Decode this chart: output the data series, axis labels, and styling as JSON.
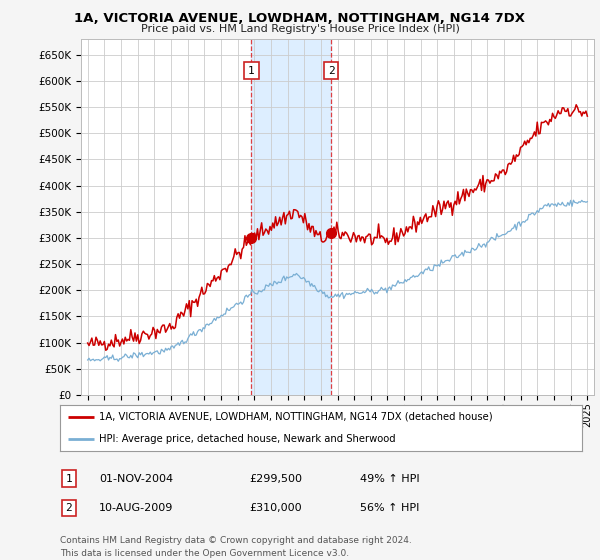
{
  "title": "1A, VICTORIA AVENUE, LOWDHAM, NOTTINGHAM, NG14 7DX",
  "subtitle": "Price paid vs. HM Land Registry's House Price Index (HPI)",
  "ylabel_ticks": [
    "£0",
    "£50K",
    "£100K",
    "£150K",
    "£200K",
    "£250K",
    "£300K",
    "£350K",
    "£400K",
    "£450K",
    "£500K",
    "£550K",
    "£600K",
    "£650K"
  ],
  "ytick_vals": [
    0,
    50000,
    100000,
    150000,
    200000,
    250000,
    300000,
    350000,
    400000,
    450000,
    500000,
    550000,
    600000,
    650000
  ],
  "ylim": [
    0,
    680000
  ],
  "xlim_start": 1994.6,
  "xlim_end": 2025.4,
  "red_line_color": "#cc0000",
  "blue_line_color": "#7aafd4",
  "shaded_color": "#ddeeff",
  "shaded_x1": 2004.83,
  "shaded_x2": 2009.62,
  "t1_x": 2004.83,
  "t1_y": 299500,
  "t2_x": 2009.62,
  "t2_y": 310000,
  "legend_red_label": "1A, VICTORIA AVENUE, LOWDHAM, NOTTINGHAM, NG14 7DX (detached house)",
  "legend_blue_label": "HPI: Average price, detached house, Newark and Sherwood",
  "table_rows": [
    {
      "num": "1",
      "date": "01-NOV-2004",
      "price": "£299,500",
      "hpi": "49% ↑ HPI"
    },
    {
      "num": "2",
      "date": "10-AUG-2009",
      "price": "£310,000",
      "hpi": "56% ↑ HPI"
    }
  ],
  "footnote1": "Contains HM Land Registry data © Crown copyright and database right 2024.",
  "footnote2": "This data is licensed under the Open Government Licence v3.0.",
  "bg_color": "#f5f5f5",
  "plot_bg": "#ffffff",
  "grid_color": "#cccccc"
}
